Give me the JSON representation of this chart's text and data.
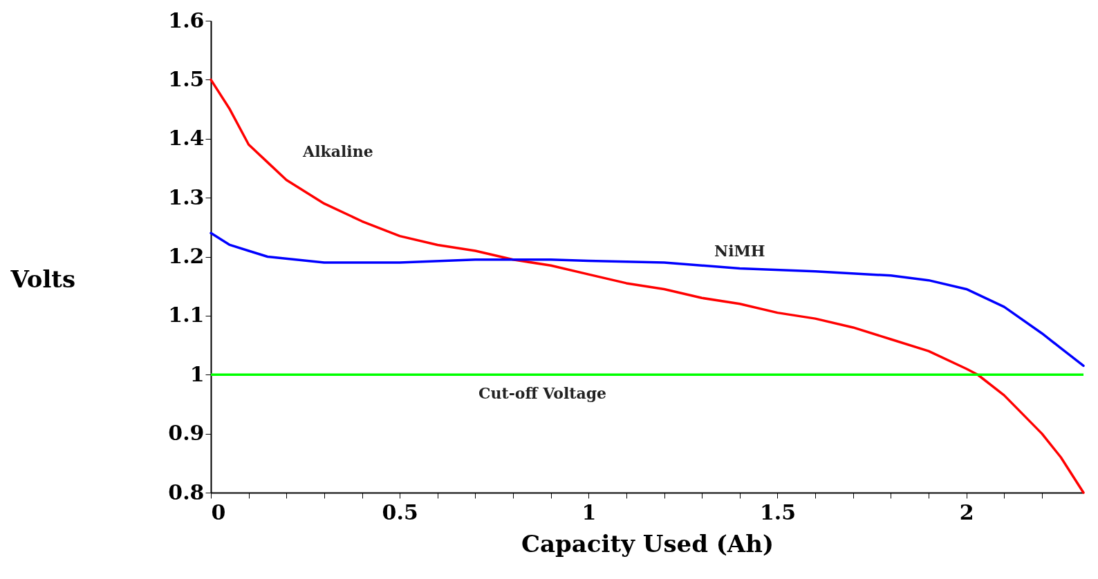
{
  "chart_data": {
    "type": "line",
    "xlabel": "Capacity Used (Ah)",
    "ylabel": "Volts",
    "xlim": [
      0,
      2.31
    ],
    "ylim": [
      0.8,
      1.6
    ],
    "xticks": [
      0,
      {
        "value": 0.1,
        "label": null
      },
      {
        "value": 0.2,
        "label": null
      },
      {
        "value": 0.3,
        "label": null
      },
      {
        "value": 0.4,
        "label": null
      },
      0.5,
      {
        "value": 0.6,
        "label": null
      },
      {
        "value": 0.7,
        "label": null
      },
      {
        "value": 0.8,
        "label": null
      },
      {
        "value": 0.9,
        "label": null
      },
      1,
      {
        "value": 1.1,
        "label": null
      },
      {
        "value": 1.2,
        "label": null
      },
      {
        "value": 1.3,
        "label": null
      },
      {
        "value": 1.4,
        "label": null
      },
      1.5,
      {
        "value": 1.6,
        "label": null
      },
      {
        "value": 1.7,
        "label": null
      },
      {
        "value": 1.8,
        "label": null
      },
      {
        "value": 1.9,
        "label": null
      },
      2,
      {
        "value": 2.1,
        "label": null
      },
      {
        "value": 2.2,
        "label": null
      }
    ],
    "yticks": [
      0.8,
      0.9,
      1,
      1.1,
      1.2,
      1.3,
      1.4,
      1.5,
      1.6
    ],
    "grid": false,
    "marker": "none",
    "line_style": "solid",
    "series": [
      {
        "name": "Alkaline",
        "color": "#ff0000",
        "x": [
          0,
          0.05,
          0.1,
          0.15,
          0.2,
          0.3,
          0.4,
          0.5,
          0.6,
          0.7,
          0.8,
          0.9,
          1.0,
          1.1,
          1.2,
          1.3,
          1.4,
          1.5,
          1.6,
          1.7,
          1.8,
          1.9,
          2.0,
          2.03,
          2.1,
          2.2,
          2.25,
          2.31
        ],
        "values": [
          1.5,
          1.45,
          1.39,
          1.36,
          1.33,
          1.29,
          1.26,
          1.235,
          1.22,
          1.21,
          1.195,
          1.185,
          1.17,
          1.155,
          1.145,
          1.13,
          1.12,
          1.105,
          1.095,
          1.08,
          1.06,
          1.04,
          1.01,
          1.0,
          0.965,
          0.9,
          0.86,
          0.8
        ]
      },
      {
        "name": "NiMH",
        "color": "#0000ff",
        "x": [
          0,
          0.05,
          0.1,
          0.15,
          0.3,
          0.5,
          0.7,
          0.9,
          1.0,
          1.2,
          1.4,
          1.6,
          1.8,
          1.9,
          2.0,
          2.1,
          2.2,
          2.25,
          2.31
        ],
        "values": [
          1.24,
          1.22,
          1.21,
          1.2,
          1.19,
          1.19,
          1.195,
          1.195,
          1.193,
          1.19,
          1.18,
          1.175,
          1.168,
          1.16,
          1.145,
          1.115,
          1.07,
          1.045,
          1.015
        ]
      }
    ],
    "ref_lines": [
      {
        "axis": "y",
        "value": 1.0,
        "label": "Cut-off Voltage",
        "color": "#00ff00"
      }
    ]
  }
}
